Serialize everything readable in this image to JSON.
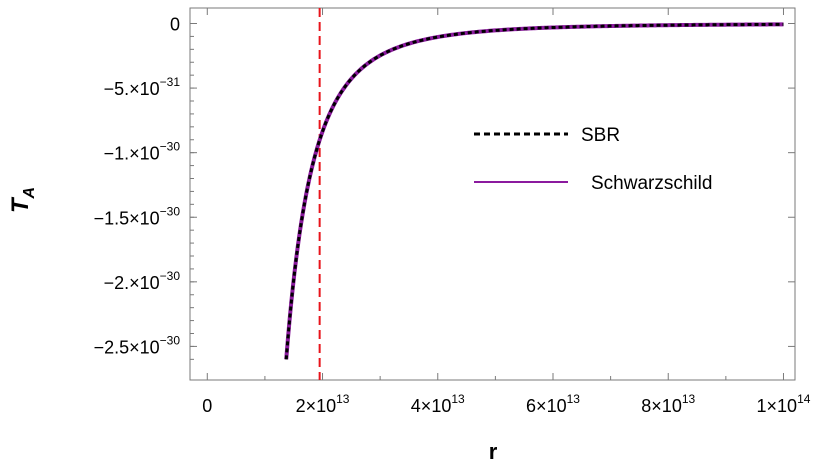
{
  "chart_data": {
    "type": "line",
    "xlabel": "r",
    "ylabel_main": "T",
    "ylabel_sub": "A",
    "xlim": [
      -3000000000000.0,
      102000000000000.0
    ],
    "ylim": [
      -2.76e-30,
      1.2e-31
    ],
    "x_ticks": [
      {
        "value": 0,
        "mantissa": "0",
        "exp": ""
      },
      {
        "value": 20000000000000.0,
        "mantissa": "2×10",
        "exp": "13"
      },
      {
        "value": 40000000000000.0,
        "mantissa": "4×10",
        "exp": "13"
      },
      {
        "value": 60000000000000.0,
        "mantissa": "6×10",
        "exp": "13"
      },
      {
        "value": 80000000000000.0,
        "mantissa": "8×10",
        "exp": "13"
      },
      {
        "value": 100000000000000.0,
        "mantissa": "1×10",
        "exp": "14"
      }
    ],
    "y_ticks": [
      {
        "value": 0,
        "mantissa": "0",
        "exp": ""
      },
      {
        "value": -5e-31,
        "mantissa": "−5.×10",
        "exp": "−31"
      },
      {
        "value": -1e-30,
        "mantissa": "−1.×10",
        "exp": "−30"
      },
      {
        "value": -1.5e-30,
        "mantissa": "−1.5×10",
        "exp": "−30"
      },
      {
        "value": -2e-30,
        "mantissa": "−2.×10",
        "exp": "−30"
      },
      {
        "value": -2.5e-30,
        "mantissa": "−2.5×10",
        "exp": "−30"
      }
    ],
    "series": [
      {
        "name": "SBR",
        "style": "dashed",
        "color": "#000000",
        "x": [
          13700000000000.0,
          15000000000000.0,
          17500000000000.0,
          20000000000000.0,
          25000000000000.0,
          30000000000000.0,
          40000000000000.0,
          50000000000000.0,
          60000000000000.0,
          70000000000000.0,
          80000000000000.0,
          90000000000000.0,
          100000000000000.0
        ],
        "y": [
          -2.6e-30,
          -1.99e-30,
          -1.27e-30,
          -8.5e-31,
          -4.4e-31,
          -2.5e-31,
          -1.05e-31,
          -5.4e-32,
          -3.1e-32,
          -2e-32,
          -1.3e-32,
          -9e-33,
          -7e-33
        ]
      },
      {
        "name": "Schwarzschild",
        "style": "solid",
        "color": "#8b1a9e",
        "x": [
          13700000000000.0,
          15000000000000.0,
          17500000000000.0,
          20000000000000.0,
          25000000000000.0,
          30000000000000.0,
          40000000000000.0,
          50000000000000.0,
          60000000000000.0,
          70000000000000.0,
          80000000000000.0,
          90000000000000.0,
          100000000000000.0
        ],
        "y": [
          -2.6e-30,
          -1.99e-30,
          -1.27e-30,
          -8.5e-31,
          -4.4e-31,
          -2.5e-31,
          -1.05e-31,
          -5.4e-32,
          -3.1e-32,
          -2e-32,
          -1.3e-32,
          -9e-33,
          -7e-33
        ]
      }
    ],
    "vertical_line": {
      "x": 19500000000000.0,
      "color": "#e8141b",
      "style": "dashed"
    },
    "legend": {
      "placement": "right"
    },
    "grid": false
  }
}
